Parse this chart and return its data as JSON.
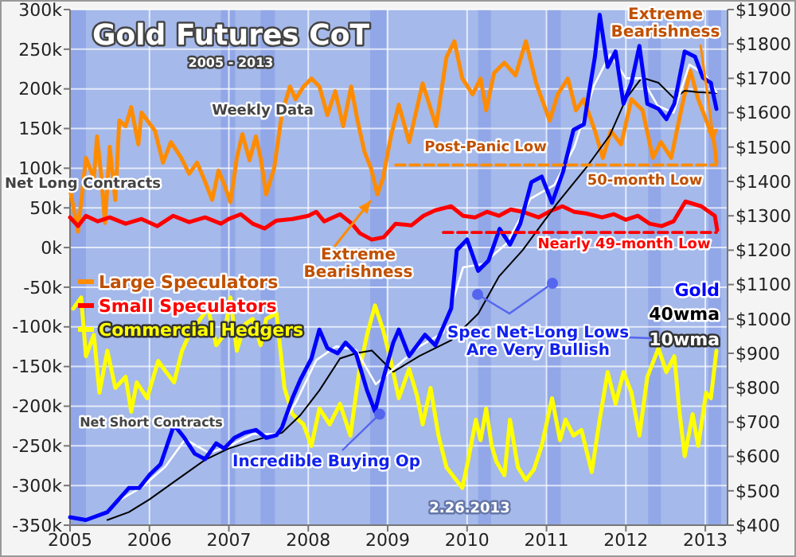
{
  "chart_data": {
    "type": "line",
    "title": "Gold Futures CoT",
    "subtitle": "2005 - 2013",
    "xlim": [
      2005,
      2013.28
    ],
    "xticks": [
      2005,
      2006,
      2007,
      2008,
      2009,
      2010,
      2011,
      2012,
      2013
    ],
    "ylim": [
      -350,
      300
    ],
    "yticks": [
      {
        "value": -350,
        "label": "-350k"
      },
      {
        "value": -300,
        "label": "-300k"
      },
      {
        "value": -250,
        "label": "-250k"
      },
      {
        "value": -200,
        "label": "-200k"
      },
      {
        "value": -150,
        "label": "-150k"
      },
      {
        "value": -100,
        "label": "-100k"
      },
      {
        "value": -50,
        "label": "-50k"
      },
      {
        "value": 0,
        "label": "0k"
      },
      {
        "value": 50,
        "label": "50k"
      },
      {
        "value": 100,
        "label": "100k"
      },
      {
        "value": 150,
        "label": "150k"
      },
      {
        "value": 200,
        "label": "200k"
      },
      {
        "value": 250,
        "label": "250k"
      },
      {
        "value": 300,
        "label": "300k"
      }
    ],
    "y2lim": [
      400,
      1900
    ],
    "y2ticks": [
      {
        "value": 400,
        "label": "$400"
      },
      {
        "value": 500,
        "label": "$500"
      },
      {
        "value": 600,
        "label": "$600"
      },
      {
        "value": 700,
        "label": "$700"
      },
      {
        "value": 800,
        "label": "$800"
      },
      {
        "value": 900,
        "label": "$900"
      },
      {
        "value": 1000,
        "label": "$1000"
      },
      {
        "value": 1100,
        "label": "$1100"
      },
      {
        "value": 1200,
        "label": "$1200"
      },
      {
        "value": 1300,
        "label": "$1300"
      },
      {
        "value": 1400,
        "label": "$1400"
      },
      {
        "value": 1500,
        "label": "$1500"
      },
      {
        "value": 1600,
        "label": "$1600"
      },
      {
        "value": 1700,
        "label": "$1700"
      },
      {
        "value": 1800,
        "label": "$1800"
      },
      {
        "value": 1900,
        "label": "$1900"
      }
    ],
    "grid": true,
    "legend": "left",
    "marker": "none",
    "series": [
      {
        "name": "Large Speculators",
        "color": "#ff8c00",
        "x": [
          2005.0,
          2005.1,
          2005.2,
          2005.3,
          2005.34,
          2005.39,
          2005.44,
          2005.5,
          2005.57,
          2005.62,
          2005.7,
          2005.77,
          2005.86,
          2005.9,
          2006.07,
          2006.17,
          2006.27,
          2006.4,
          2006.5,
          2006.6,
          2006.7,
          2006.79,
          2006.87,
          2006.94,
          2007.02,
          2007.1,
          2007.17,
          2007.26,
          2007.34,
          2007.4,
          2007.47,
          2007.57,
          2007.67,
          2007.77,
          2007.84,
          2007.94,
          2008.04,
          2008.14,
          2008.24,
          2008.34,
          2008.44,
          2008.54,
          2008.62,
          2008.71,
          2008.79,
          2008.87,
          2008.94,
          2009.04,
          2009.14,
          2009.27,
          2009.44,
          2009.61,
          2009.74,
          2009.84,
          2009.94,
          2010.07,
          2010.17,
          2010.24,
          2010.34,
          2010.47,
          2010.61,
          2010.74,
          2010.87,
          2011.04,
          2011.14,
          2011.27,
          2011.37,
          2011.47,
          2011.61,
          2011.71,
          2011.81,
          2011.94,
          2012.07,
          2012.21,
          2012.34,
          2012.44,
          2012.57,
          2012.71,
          2012.81,
          2012.91,
          2013.04,
          2013.11,
          2013.14
        ],
        "values": [
          73,
          20,
          113,
          87,
          140,
          93,
          31,
          127,
          60,
          160,
          153,
          177,
          130,
          170,
          147,
          107,
          133,
          113,
          93,
          107,
          83,
          60,
          97,
          80,
          57,
          113,
          143,
          110,
          140,
          113,
          67,
          100,
          170,
          203,
          187,
          203,
          213,
          203,
          167,
          197,
          153,
          203,
          160,
          120,
          100,
          67,
          87,
          140,
          180,
          133,
          207,
          153,
          240,
          260,
          213,
          193,
          213,
          173,
          220,
          233,
          217,
          260,
          207,
          160,
          193,
          213,
          173,
          187,
          147,
          113,
          147,
          130,
          187,
          173,
          113,
          133,
          113,
          180,
          223,
          187,
          153,
          133,
          107
        ]
      },
      {
        "name": "Small Speculators",
        "color": "#ff0000",
        "x": [
          2005.0,
          2005.1,
          2005.2,
          2005.35,
          2005.5,
          2005.7,
          2005.9,
          2006.1,
          2006.3,
          2006.5,
          2006.7,
          2006.9,
          2007.0,
          2007.15,
          2007.3,
          2007.45,
          2007.6,
          2007.8,
          2008.0,
          2008.1,
          2008.2,
          2008.4,
          2008.55,
          2008.65,
          2008.8,
          2008.95,
          2009.1,
          2009.3,
          2009.45,
          2009.6,
          2009.8,
          2009.95,
          2010.1,
          2010.25,
          2010.4,
          2010.55,
          2010.7,
          2010.9,
          2011.05,
          2011.2,
          2011.35,
          2011.5,
          2011.7,
          2011.85,
          2012.0,
          2012.15,
          2012.3,
          2012.45,
          2012.6,
          2012.75,
          2012.85,
          2012.95,
          2013.05,
          2013.12,
          2013.15
        ],
        "values": [
          38,
          27,
          40,
          33,
          38,
          30,
          36,
          27,
          40,
          32,
          38,
          30,
          36,
          42,
          30,
          24,
          34,
          36,
          40,
          45,
          33,
          42,
          30,
          18,
          10,
          13,
          30,
          28,
          40,
          47,
          52,
          40,
          38,
          45,
          40,
          48,
          45,
          38,
          46,
          52,
          45,
          43,
          38,
          42,
          35,
          40,
          30,
          27,
          33,
          58,
          55,
          52,
          45,
          40,
          22
        ]
      },
      {
        "name": "Commercial Hedgers",
        "color": "#ffff00",
        "x": [
          2005.04,
          2005.14,
          2005.2,
          2005.3,
          2005.37,
          2005.47,
          2005.57,
          2005.7,
          2005.77,
          2005.84,
          2005.97,
          2006.11,
          2006.21,
          2006.31,
          2006.41,
          2006.5,
          2006.64,
          2006.74,
          2006.84,
          2006.94,
          2007.02,
          2007.1,
          2007.2,
          2007.3,
          2007.4,
          2007.47,
          2007.6,
          2007.7,
          2007.8,
          2007.94,
          2008.04,
          2008.14,
          2008.27,
          2008.4,
          2008.53,
          2008.64,
          2008.74,
          2008.84,
          2008.94,
          2009.04,
          2009.14,
          2009.27,
          2009.37,
          2009.44,
          2009.54,
          2009.64,
          2009.74,
          2009.84,
          2009.94,
          2010.01,
          2010.11,
          2010.17,
          2010.24,
          2010.31,
          2010.37,
          2010.47,
          2010.54,
          2010.64,
          2010.74,
          2010.84,
          2010.94,
          2011.07,
          2011.17,
          2011.24,
          2011.34,
          2011.44,
          2011.57,
          2011.67,
          2011.77,
          2011.87,
          2011.97,
          2012.07,
          2012.17,
          2012.27,
          2012.41,
          2012.51,
          2012.61,
          2012.67,
          2012.74,
          2012.84,
          2012.91,
          2013.01,
          2013.07,
          2013.14
        ],
        "values": [
          -77,
          -63,
          -137,
          -110,
          -183,
          -130,
          -177,
          -163,
          -207,
          -170,
          -190,
          -143,
          -157,
          -170,
          -130,
          -110,
          -90,
          -77,
          -123,
          -110,
          -63,
          -130,
          -97,
          -90,
          -123,
          -90,
          -83,
          -177,
          -210,
          -223,
          -250,
          -203,
          -223,
          -197,
          -237,
          -157,
          -110,
          -73,
          -103,
          -143,
          -190,
          -153,
          -187,
          -223,
          -177,
          -237,
          -277,
          -290,
          -303,
          -270,
          -217,
          -243,
          -203,
          -250,
          -270,
          -287,
          -217,
          -277,
          -293,
          -280,
          -250,
          -190,
          -243,
          -217,
          -237,
          -230,
          -283,
          -217,
          -157,
          -197,
          -157,
          -183,
          -237,
          -163,
          -127,
          -157,
          -137,
          -203,
          -263,
          -210,
          -250,
          -183,
          -190,
          -130
        ]
      },
      {
        "name": "40wma",
        "color": "#000000",
        "axis": "y2",
        "x": [
          2005.47,
          2005.74,
          2006.0,
          2006.34,
          2006.7,
          2007.0,
          2007.3,
          2007.67,
          2007.9,
          2008.14,
          2008.4,
          2008.6,
          2008.8,
          2009.07,
          2009.4,
          2009.8,
          2010.14,
          2010.4,
          2010.7,
          2011.14,
          2011.5,
          2011.8,
          2012.0,
          2012.2,
          2012.41,
          2012.61,
          2012.74,
          2012.9,
          2013.14
        ],
        "values": [
          415,
          438,
          475,
          531,
          590,
          623,
          645,
          669,
          720,
          792,
          885,
          900,
          908,
          846,
          892,
          938,
          1015,
          1123,
          1200,
          1338,
          1440,
          1535,
          1640,
          1702,
          1687,
          1641,
          1664,
          1660,
          1657
        ]
      },
      {
        "name": "10wma",
        "color": "#ffffff",
        "axis": "y2",
        "x": [
          2005.6,
          2005.9,
          2006.2,
          2006.45,
          2006.75,
          2007.0,
          2007.3,
          2007.6,
          2007.85,
          2008.1,
          2008.35,
          2008.6,
          2008.85,
          2009.1,
          2009.4,
          2009.7,
          2009.95,
          2010.2,
          2010.5,
          2010.8,
          2011.1,
          2011.35,
          2011.6,
          2011.8,
          2012.0,
          2012.2,
          2012.4,
          2012.6,
          2012.8,
          2013.0,
          2013.14
        ],
        "values": [
          470,
          510,
          570,
          650,
          610,
          630,
          665,
          665,
          760,
          880,
          920,
          910,
          810,
          860,
          920,
          960,
          1150,
          1160,
          1220,
          1350,
          1390,
          1500,
          1680,
          1770,
          1700,
          1700,
          1620,
          1600,
          1740,
          1710,
          1660
        ]
      },
      {
        "name": "Gold",
        "color": "#0000ff",
        "axis": "y2",
        "x": [
          2005.0,
          2005.2,
          2005.47,
          2005.74,
          2005.87,
          2006.0,
          2006.14,
          2006.31,
          2006.44,
          2006.57,
          2006.7,
          2006.84,
          2006.94,
          2007.07,
          2007.2,
          2007.34,
          2007.47,
          2007.6,
          2007.67,
          2007.8,
          2007.9,
          2008.04,
          2008.14,
          2008.24,
          2008.37,
          2008.47,
          2008.6,
          2008.74,
          2008.84,
          2008.94,
          2009.07,
          2009.14,
          2009.27,
          2009.47,
          2009.6,
          2009.8,
          2009.87,
          2010.0,
          2010.14,
          2010.27,
          2010.41,
          2010.54,
          2010.67,
          2010.81,
          2010.94,
          2011.07,
          2011.21,
          2011.34,
          2011.47,
          2011.61,
          2011.67,
          2011.77,
          2011.87,
          2011.97,
          2012.07,
          2012.17,
          2012.27,
          2012.41,
          2012.51,
          2012.61,
          2012.74,
          2012.87,
          2012.97,
          2013.07,
          2013.14
        ],
        "values": [
          423,
          415,
          438,
          508,
          508,
          546,
          577,
          692,
          654,
          608,
          592,
          638,
          623,
          654,
          669,
          677,
          654,
          662,
          685,
          769,
          823,
          885,
          969,
          915,
          900,
          931,
          900,
          792,
          731,
          823,
          931,
          969,
          892,
          954,
          923,
          1031,
          1200,
          1231,
          1140,
          1170,
          1262,
          1216,
          1277,
          1398,
          1414,
          1338,
          1429,
          1550,
          1566,
          1763,
          1885,
          1733,
          1778,
          1626,
          1687,
          1794,
          1626,
          1611,
          1581,
          1626,
          1778,
          1763,
          1702,
          1687,
          1611
        ]
      },
      {
        "type": "line",
        "color": "#ff8c00",
        "line_style": "dashed",
        "x": [
          2009.1,
          2013.14
        ],
        "values": [
          104,
          104
        ]
      },
      {
        "type": "line",
        "color": "#ff0000",
        "line_style": "dashed",
        "x": [
          2009.7,
          2013.14
        ],
        "values": [
          19,
          19
        ]
      }
    ],
    "bands": [
      {
        "axis": "x",
        "from": 2005.0,
        "to": 2005.2,
        "color": "#8da3e6"
      },
      {
        "axis": "x",
        "from": 2006.9,
        "to": 2007.08,
        "color": "#8da3e6"
      },
      {
        "axis": "x",
        "from": 2007.4,
        "to": 2007.58,
        "color": "#8da3e6"
      },
      {
        "axis": "x",
        "from": 2008.78,
        "to": 2008.98,
        "color": "#8da3e6"
      },
      {
        "axis": "x",
        "from": 2010.14,
        "to": 2010.3,
        "color": "#8da3e6"
      },
      {
        "axis": "x",
        "from": 2011.0,
        "to": 2011.18,
        "color": "#8da3e6"
      },
      {
        "axis": "x",
        "from": 2012.28,
        "to": 2012.44,
        "color": "#8da3e6"
      },
      {
        "axis": "x",
        "from": 2013.04,
        "to": 2013.2,
        "color": "#8da3e6"
      }
    ],
    "annotations": [
      "Weekly Data",
      "Net Long Contracts",
      "Net Short Contracts",
      "Extreme Bearishness",
      "Post-Panic Low",
      "50-month Low",
      "Nearly 49-month Low",
      {
        "text": "Extreme Bearishness",
        "x": 2013.11,
        "y": 133
      },
      {
        "text": "Spec Net-Long Lows Are Very Bullish",
        "x": 2013.05,
        "y": -117
      },
      {
        "text": "Incredible Buying Op",
        "x": 2008.9,
        "y": -210
      },
      "2.26.2013"
    ]
  }
}
